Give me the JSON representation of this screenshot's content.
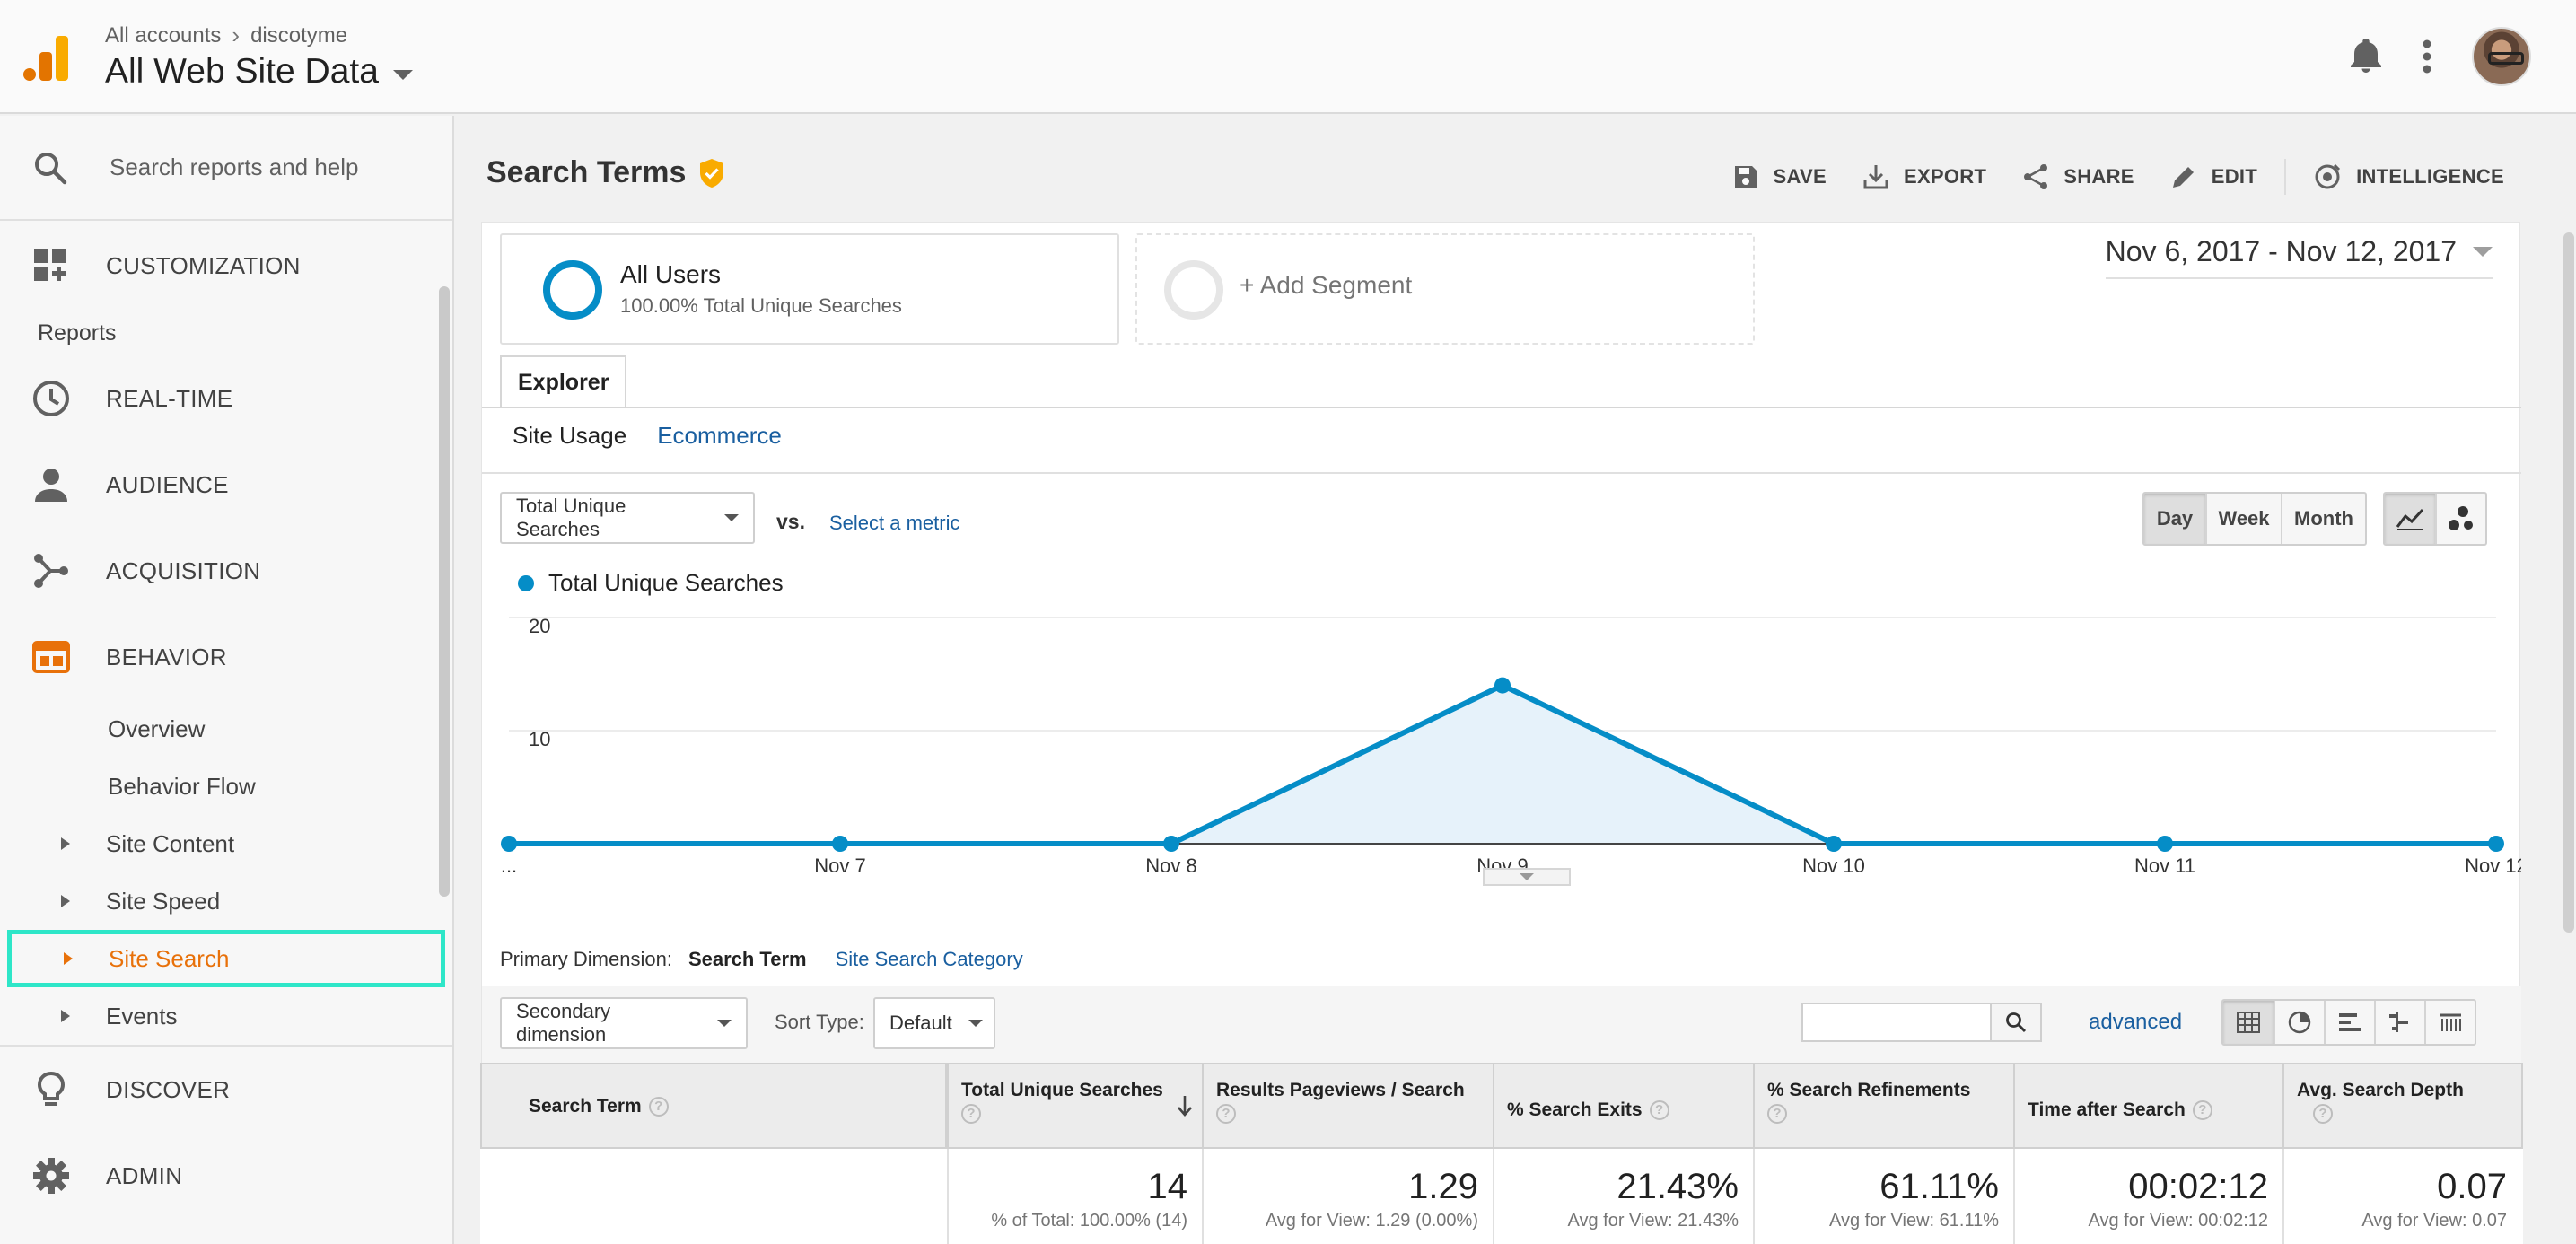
{
  "header": {
    "breadcrumb_root": "All accounts",
    "breadcrumb_account": "discotyme",
    "view_name": "All Web Site Data"
  },
  "sidebar": {
    "search_placeholder": "Search reports and help",
    "customization": "CUSTOMIZATION",
    "reports_label": "Reports",
    "realtime": "REAL-TIME",
    "audience": "AUDIENCE",
    "acquisition": "ACQUISITION",
    "behavior": "BEHAVIOR",
    "behavior_items": [
      "Overview",
      "Behavior Flow",
      "Site Content",
      "Site Speed",
      "Site Search",
      "Events"
    ],
    "discover": "DISCOVER",
    "admin": "ADMIN",
    "selected_item": "Site Search",
    "selected_color": "#e8710a"
  },
  "report": {
    "title": "Search Terms",
    "actions": {
      "save": "SAVE",
      "export": "EXPORT",
      "share": "SHARE",
      "edit": "EDIT",
      "intelligence": "INTELLIGENCE"
    },
    "segments": {
      "active_name": "All Users",
      "active_sub": "100.00% Total Unique Searches",
      "add": "+ Add Segment"
    },
    "date_range": "Nov 6, 2017 - Nov 12, 2017",
    "explorer_tab": "Explorer",
    "subtabs": [
      "Site Usage",
      "Ecommerce"
    ],
    "metric_selector": "Total Unique Searches",
    "vs_label": "vs.",
    "select_metric": "Select a metric",
    "granularity": [
      "Day",
      "Week",
      "Month"
    ],
    "granularity_selected": "Day",
    "accent": "#058dc7"
  },
  "chart_data": {
    "type": "area",
    "series": [
      {
        "name": "Total Unique Searches",
        "values": [
          0,
          0,
          0,
          14,
          0,
          0,
          0
        ]
      }
    ],
    "categories": [
      "...",
      "Nov 7",
      "Nov 8",
      "Nov 9",
      "Nov 10",
      "Nov 11",
      "Nov 12"
    ],
    "yticks": [
      "10",
      "20"
    ],
    "ylim": [
      0,
      20
    ],
    "legend": "top-left",
    "grid": true
  },
  "table": {
    "primary_dimension_label": "Primary Dimension:",
    "primary_dimension": "Search Term",
    "alt_dimension": "Site Search Category",
    "secondary_dimension": "Secondary dimension",
    "sort_type_label": "Sort Type:",
    "sort_type": "Default",
    "advanced": "advanced",
    "columns": [
      "Search Term",
      "Total Unique Searches",
      "Results Pageviews / Search",
      "% Search Exits",
      "% Search Refinements",
      "Time after Search",
      "Avg. Search Depth"
    ],
    "totals": [
      {
        "value": "14",
        "sub": "% of Total: 100.00% (14)"
      },
      {
        "value": "1.29",
        "sub": "Avg for View: 1.29 (0.00%)"
      },
      {
        "value": "21.43%",
        "sub": "Avg for View: 21.43%"
      },
      {
        "value": "61.11%",
        "sub": "Avg for View: 61.11%"
      },
      {
        "value": "00:02:12",
        "sub": "Avg for View: 00:02:12"
      },
      {
        "value": "0.07",
        "sub": "Avg for View: 0.07"
      }
    ]
  }
}
